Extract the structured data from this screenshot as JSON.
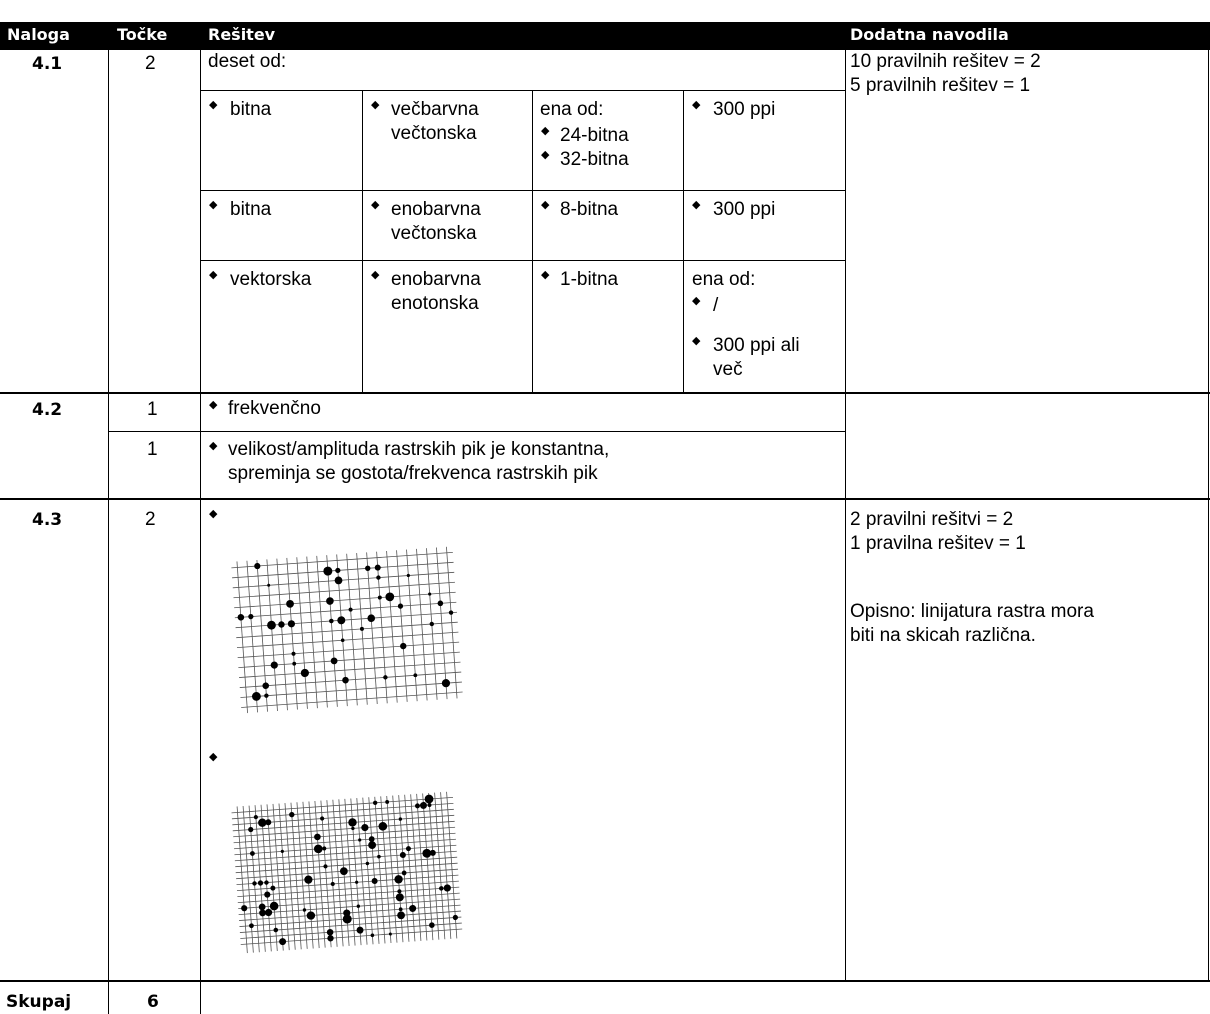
{
  "headers": {
    "task": "Naloga",
    "points": "Točke",
    "solution": "Rešitev",
    "notes": "Dodatna navodila"
  },
  "bullet": "◆",
  "q41": {
    "task": "4.1",
    "points": "2",
    "intro": "deset od:",
    "notes": [
      "10 pravilnih rešitev = 2",
      "5 pravilnih rešitev = 1"
    ],
    "rows": [
      {
        "c1": "bitna",
        "c2": [
          "večbarvna",
          "večtonska"
        ],
        "c3_intro": "ena od:",
        "c3": [
          "24-bitna",
          "32-bitna"
        ],
        "c4": "300 ppi"
      },
      {
        "c1": "bitna",
        "c2": [
          "enobarvna",
          "večtonska"
        ],
        "c3": "8-bitna",
        "c4": "300 ppi"
      },
      {
        "c1": "vektorska",
        "c2": [
          "enobarvna",
          "enotonska"
        ],
        "c3": "1-bitna",
        "c4_intro": "ena od:",
        "c4": [
          "/",
          "300 ppi ali",
          "več"
        ]
      }
    ]
  },
  "q42": {
    "task": "4.2",
    "rows": [
      {
        "points": "1",
        "text": [
          "frekvenčno"
        ]
      },
      {
        "points": "1",
        "text": [
          "velikost/amplituda rastrskih pik je konstantna,",
          "spreminja se gostota/frekvenca rastrskih pik"
        ]
      }
    ]
  },
  "q43": {
    "task": "4.3",
    "points": "2",
    "notes": [
      "2 pravilni rešitvi = 2",
      "1 pravilna rešitev = 1",
      "",
      "Opisno: linijatura rastra mora",
      "biti na skicah različna."
    ]
  },
  "total": {
    "label": "Skupaj",
    "points": "6"
  }
}
